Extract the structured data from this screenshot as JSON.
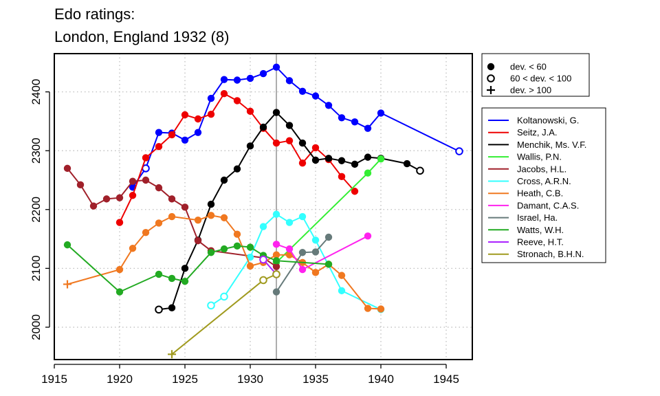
{
  "chart_data": {
    "type": "line",
    "title": [
      "Edo ratings:",
      "London, England 1932 (8)"
    ],
    "xlim": [
      1915,
      1947
    ],
    "ylim": [
      1945,
      2465
    ],
    "x_ticks": [
      1915,
      1920,
      1925,
      1930,
      1935,
      1940,
      1945
    ],
    "y_ticks": [
      2000,
      2100,
      2200,
      2300,
      2400
    ],
    "grid": true,
    "reference_line_x": 1932,
    "marker_legend": [
      {
        "marker": "filled",
        "label": "dev. < 60"
      },
      {
        "marker": "open",
        "label": "60 < dev. < 100"
      },
      {
        "marker": "plus",
        "label": "dev. > 100"
      }
    ],
    "series": [
      {
        "name": "Koltanowski, G.",
        "color": "#0000FF",
        "points": [
          [
            1921,
            2238,
            "f"
          ],
          [
            1922,
            2270,
            "o"
          ],
          [
            1923,
            2331,
            "f"
          ],
          [
            1924,
            2330,
            "f"
          ],
          [
            1925,
            2318,
            "f"
          ],
          [
            1926,
            2331,
            "f"
          ],
          [
            1927,
            2389,
            "f"
          ],
          [
            1928,
            2421,
            "f"
          ],
          [
            1929,
            2420,
            "f"
          ],
          [
            1930,
            2423,
            "f"
          ],
          [
            1931,
            2431,
            "f"
          ],
          [
            1932,
            2442,
            "f"
          ],
          [
            1933,
            2419,
            "f"
          ],
          [
            1934,
            2401,
            "f"
          ],
          [
            1935,
            2393,
            "f"
          ],
          [
            1936,
            2377,
            "f"
          ],
          [
            1937,
            2356,
            "f"
          ],
          [
            1938,
            2349,
            "f"
          ],
          [
            1939,
            2338,
            "f"
          ],
          [
            1940,
            2364,
            "f"
          ],
          [
            1946,
            2299,
            "o"
          ]
        ]
      },
      {
        "name": "Seitz, J.A.",
        "color": "#EE0000",
        "points": [
          [
            1920,
            2178,
            "f"
          ],
          [
            1921,
            2224,
            "f"
          ],
          [
            1922,
            2288,
            "f"
          ],
          [
            1923,
            2307,
            "f"
          ],
          [
            1924,
            2327,
            "f"
          ],
          [
            1925,
            2361,
            "f"
          ],
          [
            1926,
            2354,
            "f"
          ],
          [
            1927,
            2362,
            "f"
          ],
          [
            1928,
            2397,
            "f"
          ],
          [
            1929,
            2385,
            "f"
          ],
          [
            1930,
            2367,
            "f"
          ],
          [
            1931,
            2338,
            "f"
          ],
          [
            1932,
            2313,
            "f"
          ],
          [
            1933,
            2317,
            "f"
          ],
          [
            1934,
            2279,
            "f"
          ],
          [
            1935,
            2305,
            "f"
          ],
          [
            1936,
            2285,
            "f"
          ],
          [
            1937,
            2256,
            "f"
          ],
          [
            1938,
            2231,
            "f"
          ]
        ]
      },
      {
        "name": "Menchik, Ms. V.F.",
        "color": "#000000",
        "points": [
          [
            1923,
            2030,
            "o"
          ],
          [
            1924,
            2033,
            "f"
          ],
          [
            1925,
            2100,
            "f"
          ],
          [
            1926,
            2148,
            "f"
          ],
          [
            1927,
            2209,
            "f"
          ],
          [
            1928,
            2250,
            "f"
          ],
          [
            1929,
            2269,
            "f"
          ],
          [
            1930,
            2308,
            "f"
          ],
          [
            1931,
            2340,
            "f"
          ],
          [
            1932,
            2365,
            "f"
          ],
          [
            1933,
            2343,
            "f"
          ],
          [
            1934,
            2313,
            "f"
          ],
          [
            1935,
            2284,
            "f"
          ],
          [
            1936,
            2287,
            "f"
          ],
          [
            1937,
            2283,
            "f"
          ],
          [
            1938,
            2277,
            "f"
          ],
          [
            1939,
            2289,
            "f"
          ],
          [
            1940,
            2287,
            "f"
          ],
          [
            1942,
            2278,
            "f"
          ],
          [
            1943,
            2266,
            "o"
          ]
        ]
      },
      {
        "name": "Wallis, P.N.",
        "color": "#33EE33",
        "points": [
          [
            1932,
            2110,
            "f"
          ],
          [
            1939,
            2262,
            "f"
          ],
          [
            1940,
            2286,
            "f"
          ]
        ]
      },
      {
        "name": "Jacobs, H.L.",
        "color": "#A0202A",
        "points": [
          [
            1916,
            2270,
            "f"
          ],
          [
            1917,
            2242,
            "f"
          ],
          [
            1918,
            2206,
            "f"
          ],
          [
            1919,
            2218,
            "f"
          ],
          [
            1920,
            2220,
            "f"
          ],
          [
            1921,
            2248,
            "f"
          ],
          [
            1922,
            2250,
            "f"
          ],
          [
            1923,
            2237,
            "f"
          ],
          [
            1924,
            2218,
            "f"
          ],
          [
            1925,
            2204,
            "f"
          ],
          [
            1926,
            2147,
            "f"
          ],
          [
            1927,
            2130,
            "f"
          ],
          [
            1931,
            2118,
            "f"
          ],
          [
            1932,
            2103,
            "f"
          ]
        ]
      },
      {
        "name": "Cross, A.R.N.",
        "color": "#33FFFF",
        "points": [
          [
            1927,
            2037,
            "o"
          ],
          [
            1928,
            2052,
            "o"
          ],
          [
            1930,
            2119,
            "f"
          ],
          [
            1931,
            2171,
            "f"
          ],
          [
            1932,
            2192,
            "f"
          ],
          [
            1933,
            2178,
            "f"
          ],
          [
            1934,
            2188,
            "f"
          ],
          [
            1935,
            2148,
            "f"
          ],
          [
            1937,
            2062,
            "f"
          ],
          [
            1940,
            2030,
            "f"
          ]
        ]
      },
      {
        "name": "Heath, C.B.",
        "color": "#F07820",
        "points": [
          [
            1916,
            2073,
            "n"
          ],
          [
            1920,
            2098,
            "f"
          ],
          [
            1921,
            2134,
            "f"
          ],
          [
            1922,
            2161,
            "f"
          ],
          [
            1923,
            2177,
            "f"
          ],
          [
            1924,
            2188,
            "f"
          ],
          [
            1926,
            2182,
            "f"
          ],
          [
            1927,
            2190,
            "f"
          ],
          [
            1928,
            2186,
            "f"
          ],
          [
            1929,
            2158,
            "f"
          ],
          [
            1930,
            2104,
            "f"
          ],
          [
            1931,
            2110,
            "f"
          ],
          [
            1932,
            2123,
            "f"
          ],
          [
            1933,
            2123,
            "f"
          ],
          [
            1934,
            2110,
            "f"
          ],
          [
            1935,
            2093,
            "f"
          ],
          [
            1936,
            2107,
            "f"
          ],
          [
            1937,
            2088,
            "f"
          ],
          [
            1939,
            2032,
            "f"
          ],
          [
            1940,
            2031,
            "f"
          ]
        ]
      },
      {
        "name": "Damant, C.A.S.",
        "color": "#FF22EE",
        "points": [
          [
            1932,
            2141,
            "f"
          ],
          [
            1933,
            2133,
            "f"
          ],
          [
            1934,
            2098,
            "f"
          ],
          [
            1939,
            2155,
            "f"
          ]
        ]
      },
      {
        "name": "Israel, Ha.",
        "color": "#667A7A",
        "points": [
          [
            1932,
            2060,
            "f"
          ],
          [
            1934,
            2127,
            "f"
          ],
          [
            1935,
            2128,
            "f"
          ],
          [
            1936,
            2153,
            "f"
          ]
        ]
      },
      {
        "name": "Watts, W.H.",
        "color": "#22AA22",
        "points": [
          [
            1916,
            2140,
            "f"
          ],
          [
            1920,
            2060,
            "f"
          ],
          [
            1923,
            2090,
            "f"
          ],
          [
            1924,
            2083,
            "f"
          ],
          [
            1925,
            2078,
            "f"
          ],
          [
            1927,
            2127,
            "f"
          ],
          [
            1928,
            2133,
            "f"
          ],
          [
            1929,
            2138,
            "f"
          ],
          [
            1930,
            2136,
            "f"
          ],
          [
            1931,
            2122,
            "f"
          ],
          [
            1932,
            2113,
            "f"
          ],
          [
            1936,
            2107,
            "f"
          ]
        ]
      },
      {
        "name": "Reeve, H.T.",
        "color": "#AA22FF",
        "points": [
          [
            1931,
            2115,
            "o"
          ],
          [
            1932,
            2090,
            "o"
          ]
        ]
      },
      {
        "name": "Stronach, B.H.N.",
        "color": "#A09A1E",
        "points": [
          [
            1924,
            1954,
            "n"
          ],
          [
            1931,
            2080,
            "o"
          ],
          [
            1932,
            2090,
            "o"
          ]
        ]
      }
    ]
  }
}
